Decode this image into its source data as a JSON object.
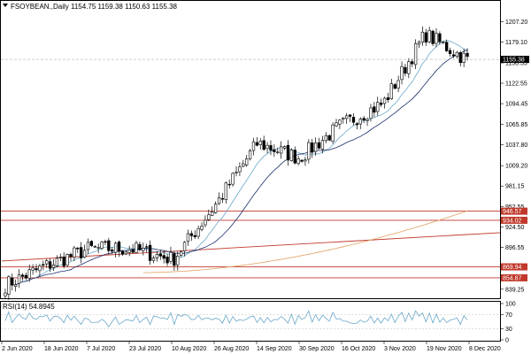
{
  "header": {
    "symbol": "FSOYBEAN.,Daily",
    "ohlc": "1154.75 1159.38 1150.63 1155.38"
  },
  "rsi": {
    "label": "RSI(14) 54.8945"
  },
  "colors": {
    "bull": "#ffffff",
    "bear": "#000000",
    "ma_fast": "#6aa7c9",
    "ma_slow": "#1a2d6b",
    "ma_long": "#e0a060",
    "level": "#c0392b",
    "trend": "#c0392b",
    "rsi_line": "#6aa7c9",
    "grid": "#d9d9d9"
  },
  "chart_data": [
    {
      "type": "candlestick",
      "title": "",
      "price_axis_ticks": [
        "1207.20",
        "1179.10",
        "1150.55",
        "1122.55",
        "1094.45",
        "1065.85",
        "1037.80",
        "1009.20",
        "981.15",
        "952.55",
        "924.50",
        "896.55",
        "867.95",
        "839.25"
      ],
      "date_axis_ticks": [
        "2 Jun 2020",
        "18 Jun 2020",
        "7 Jul 2020",
        "23 Jul 2020",
        "10 Aug 2020",
        "26 Aug 2020",
        "14 Sep 2020",
        "30 Sep 2020",
        "16 Oct 2020",
        "3 Nov 2020",
        "19 Nov 2020",
        "8 Dec 2020"
      ],
      "ylim": [
        828,
        1220
      ],
      "last_price": "1155.38",
      "levels": [
        {
          "label": "946.57",
          "value": 946.57
        },
        {
          "label": "934.02",
          "value": 934.02
        },
        {
          "label": "869.94",
          "value": 869.94
        },
        {
          "label": "854.87",
          "value": 854.87
        }
      ],
      "trendline": [
        {
          "t": 0,
          "v": 878
        },
        {
          "t": 1,
          "v": 917
        }
      ],
      "key_closes": [
        {
          "date": "2 Jun 2020",
          "value": 845
        },
        {
          "date": "18 Jun 2020",
          "value": 872
        },
        {
          "date": "7 Jul 2020",
          "value": 895
        },
        {
          "date": "23 Jul 2020",
          "value": 895
        },
        {
          "date": "10 Aug 2020",
          "value": 880
        },
        {
          "date": "26 Aug 2020",
          "value": 955
        },
        {
          "date": "14 Sep 2020",
          "value": 1040
        },
        {
          "date": "30 Sep 2020",
          "value": 1020
        },
        {
          "date": "16 Oct 2020",
          "value": 1065
        },
        {
          "date": "3 Nov 2020",
          "value": 1095
        },
        {
          "date": "19 Nov 2020",
          "value": 1190
        },
        {
          "date": "8 Dec 2020",
          "value": 1155
        }
      ]
    },
    {
      "type": "line",
      "title": "",
      "ylim": [
        0,
        100
      ],
      "ticks": [
        "100",
        "70",
        "30",
        "0"
      ],
      "value": 54.8945
    }
  ]
}
